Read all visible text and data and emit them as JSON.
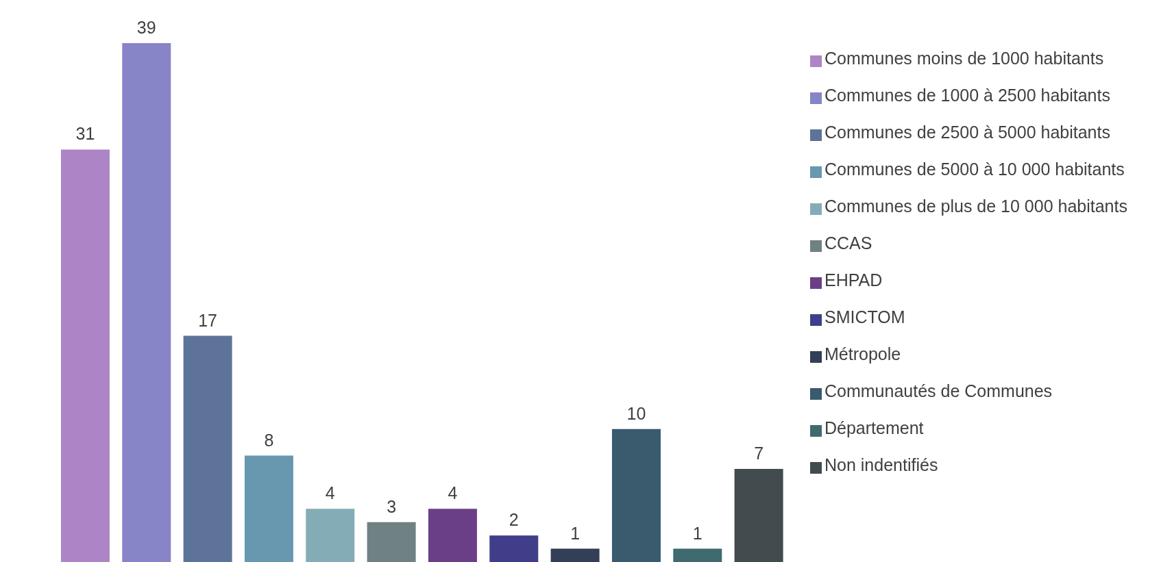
{
  "chart_data": {
    "type": "bar",
    "categories": [
      null,
      null,
      null,
      null,
      null,
      null,
      null,
      null,
      null,
      null,
      null,
      null
    ],
    "series": [
      {
        "name": "Communes moins de 1000 habitants",
        "color": "#ad84c6",
        "values": [
          31,
          null,
          null,
          null,
          null,
          null,
          null,
          null,
          null,
          null,
          null,
          null
        ]
      },
      {
        "name": "Communes de 1000 à 2500 habitants",
        "color": "#8784c7",
        "values": [
          null,
          39,
          null,
          null,
          null,
          null,
          null,
          null,
          null,
          null,
          null,
          null
        ]
      },
      {
        "name": "Communes de 2500 à 5000 habitants",
        "color": "#5e7399",
        "values": [
          null,
          null,
          17,
          null,
          null,
          null,
          null,
          null,
          null,
          null,
          null,
          null
        ]
      },
      {
        "name": "Communes de 5000 à 10 000 habitants",
        "color": "#6798b0",
        "values": [
          null,
          null,
          null,
          8,
          null,
          null,
          null,
          null,
          null,
          null,
          null,
          null
        ]
      },
      {
        "name": "Communes de plus de 10 000 habitants",
        "color": "#84acb6",
        "values": [
          null,
          null,
          null,
          null,
          4,
          null,
          null,
          null,
          null,
          null,
          null,
          null
        ]
      },
      {
        "name": "CCAS",
        "color": "#6f8183",
        "values": [
          null,
          null,
          null,
          null,
          null,
          3,
          null,
          null,
          null,
          null,
          null,
          null
        ]
      },
      {
        "name": "EHPAD",
        "color": "#6b3f87",
        "values": [
          null,
          null,
          null,
          null,
          null,
          null,
          4,
          null,
          null,
          null,
          null,
          null
        ]
      },
      {
        "name": "SMICTOM",
        "color": "#413e89",
        "values": [
          null,
          null,
          null,
          null,
          null,
          null,
          null,
          2,
          null,
          null,
          null,
          null
        ]
      },
      {
        "name": "Métropole",
        "color": "#333f56",
        "values": [
          null,
          null,
          null,
          null,
          null,
          null,
          null,
          null,
          1,
          null,
          null,
          null
        ]
      },
      {
        "name": "Communautés de Communes",
        "color": "#3a5a6e",
        "values": [
          null,
          null,
          null,
          null,
          null,
          null,
          null,
          null,
          null,
          10,
          null,
          null
        ]
      },
      {
        "name": "Département",
        "color": "#3f6b70",
        "values": [
          null,
          null,
          null,
          null,
          null,
          null,
          null,
          null,
          null,
          null,
          1,
          null
        ]
      },
      {
        "name": "Non indentifiés",
        "color": "#424b4e",
        "values": [
          null,
          null,
          null,
          null,
          null,
          null,
          null,
          null,
          null,
          null,
          null,
          7
        ]
      }
    ],
    "stacked": true,
    "data_labels": true,
    "legend": "right",
    "tick_labels": false,
    "grid": false
  }
}
